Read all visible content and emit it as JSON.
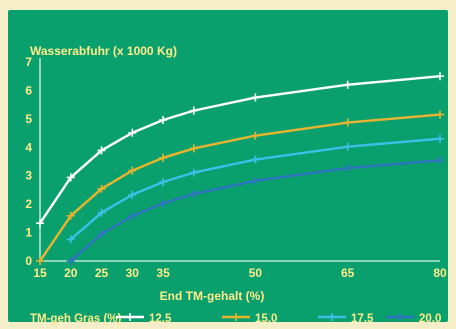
{
  "chart_data": {
    "type": "line",
    "ylabel": "Wasserabfuhr (x 1000 Kg)",
    "xlabel": "End TM-gehalt (%)",
    "legend_title": "TM-geh Gras (%)",
    "legend_placement": "bottom",
    "xlim": [
      15,
      80
    ],
    "ylim": [
      0,
      7
    ],
    "x_ticks": [
      "15",
      "20",
      "25",
      "30",
      "35",
      "50",
      "65",
      "80"
    ],
    "y_ticks": [
      "0",
      "1",
      "2",
      "3",
      "4",
      "5",
      "6",
      "7"
    ],
    "grid": false,
    "series": [
      {
        "name": "12.5",
        "color": "#ffffff",
        "x": [
          15,
          20,
          25,
          30,
          35,
          40,
          50,
          65,
          80
        ],
        "y": [
          1.33,
          2.94,
          3.89,
          4.51,
          4.96,
          5.29,
          5.75,
          6.2,
          6.5
        ]
      },
      {
        "name": "15.0",
        "color": "#e8b430",
        "x": [
          15,
          20,
          25,
          30,
          35,
          40,
          50,
          65,
          80
        ],
        "y": [
          0,
          1.59,
          2.54,
          3.18,
          3.63,
          3.96,
          4.41,
          4.87,
          5.15
        ]
      },
      {
        "name": "17.5",
        "color": "#3cc0e8",
        "x": [
          20,
          25,
          30,
          35,
          40,
          50,
          65,
          80
        ],
        "y": [
          0.76,
          1.7,
          2.33,
          2.78,
          3.11,
          3.57,
          4.02,
          4.3
        ]
      },
      {
        "name": "20.0",
        "color": "#2d73c0",
        "x": [
          20,
          25,
          30,
          35,
          40,
          50,
          65,
          80
        ],
        "y": [
          0,
          0.95,
          1.58,
          2.03,
          2.36,
          2.82,
          3.27,
          3.54
        ]
      }
    ]
  }
}
